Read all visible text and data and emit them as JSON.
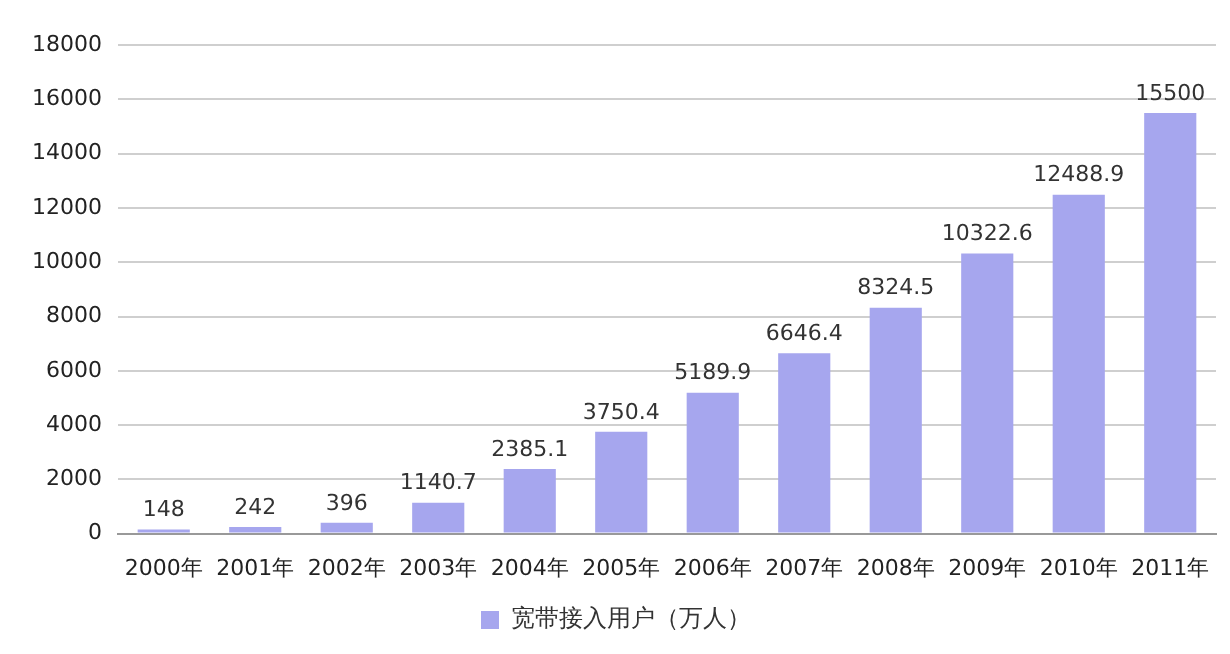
{
  "chart_data": {
    "type": "bar",
    "categories": [
      "2000年",
      "2001年",
      "2002年",
      "2003年",
      "2004年",
      "2005年",
      "2006年",
      "2007年",
      "2008年",
      "2009年",
      "2010年",
      "2011年"
    ],
    "series": [
      {
        "name": "宽带接入用户（万人）",
        "color": "#a6a6ee",
        "values": [
          148,
          242,
          396,
          1140.7,
          2385.1,
          3750.4,
          5189.9,
          6646.4,
          8324.5,
          10322.6,
          12488.9,
          15500
        ]
      }
    ],
    "ylim": [
      0,
      18000
    ],
    "yticks": [
      0,
      2000,
      4000,
      6000,
      8000,
      10000,
      12000,
      14000,
      16000,
      18000
    ],
    "grid": "y",
    "legend": "bottom",
    "data_labels": true
  }
}
